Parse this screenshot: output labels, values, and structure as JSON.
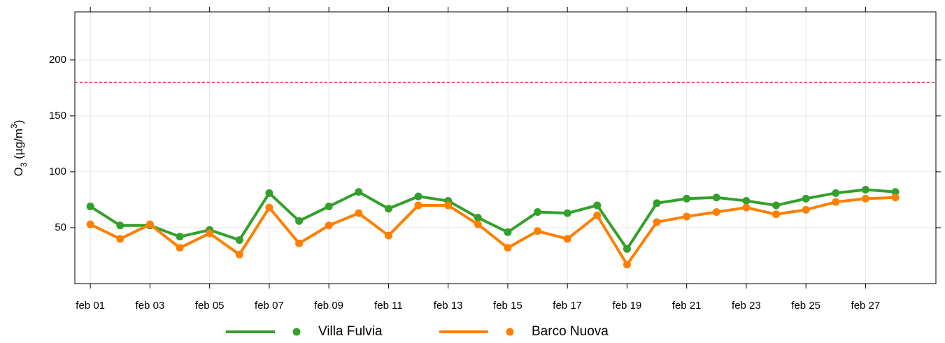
{
  "chart_data": {
    "type": "line",
    "ylabel": [
      "O",
      "3",
      " (µg/m",
      "3",
      ")"
    ],
    "categories": [
      "feb 01",
      null,
      "feb 03",
      null,
      "feb 05",
      null,
      "feb 07",
      null,
      "feb 09",
      null,
      "feb 11",
      null,
      "feb 13",
      null,
      "feb 15",
      null,
      "feb 17",
      null,
      "feb 19",
      null,
      "feb 21",
      null,
      "feb 23",
      null,
      "feb 25",
      null,
      "feb 27",
      null
    ],
    "series": [
      {
        "name": "Villa Fulvia",
        "color": "#33a02c",
        "values": [
          69,
          52,
          52,
          42,
          48,
          39,
          81,
          56,
          69,
          82,
          67,
          78,
          74,
          59,
          46,
          64,
          63,
          70,
          31,
          72,
          76,
          77,
          74,
          70,
          76,
          81,
          84,
          82
        ]
      },
      {
        "name": "Barco Nuova",
        "color": "#ff7f00",
        "values": [
          53,
          40,
          53,
          32,
          45,
          26,
          68,
          36,
          52,
          63,
          43,
          70,
          70,
          53,
          32,
          47,
          40,
          61,
          17,
          55,
          60,
          64,
          68,
          62,
          66,
          73,
          76,
          77
        ]
      }
    ],
    "reference_line": {
      "value": 180,
      "color": "#e41a1c"
    },
    "ylim": [
      0,
      243
    ],
    "yticks": [
      50,
      100,
      150,
      200
    ],
    "grid": true
  }
}
